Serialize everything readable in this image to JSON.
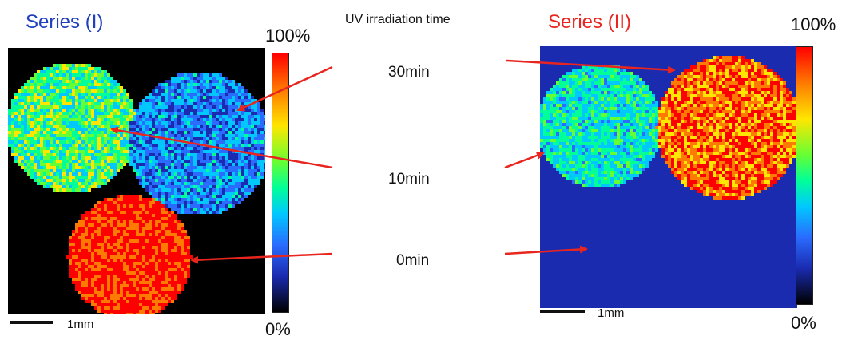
{
  "series_1": {
    "title": "Series (I)",
    "title_color": "#1f3fbf",
    "colorbar_max": "100%",
    "colorbar_min": "0%",
    "scale_label": "1mm"
  },
  "series_2": {
    "title": "Series (II)",
    "title_color": "#e8251f",
    "colorbar_max": "100%",
    "colorbar_min": "0%",
    "scale_label": "1mm"
  },
  "legend": {
    "header": "UV irradiation time",
    "times": [
      "30min",
      "10min",
      "0min"
    ],
    "arrow_color": "#e8251f"
  },
  "colormap": [
    "#000000",
    "#1a2bb0",
    "#2a6cff",
    "#00c8ff",
    "#00ff99",
    "#66ff33",
    "#ffe600",
    "#ff7a00",
    "#ff0000"
  ]
}
